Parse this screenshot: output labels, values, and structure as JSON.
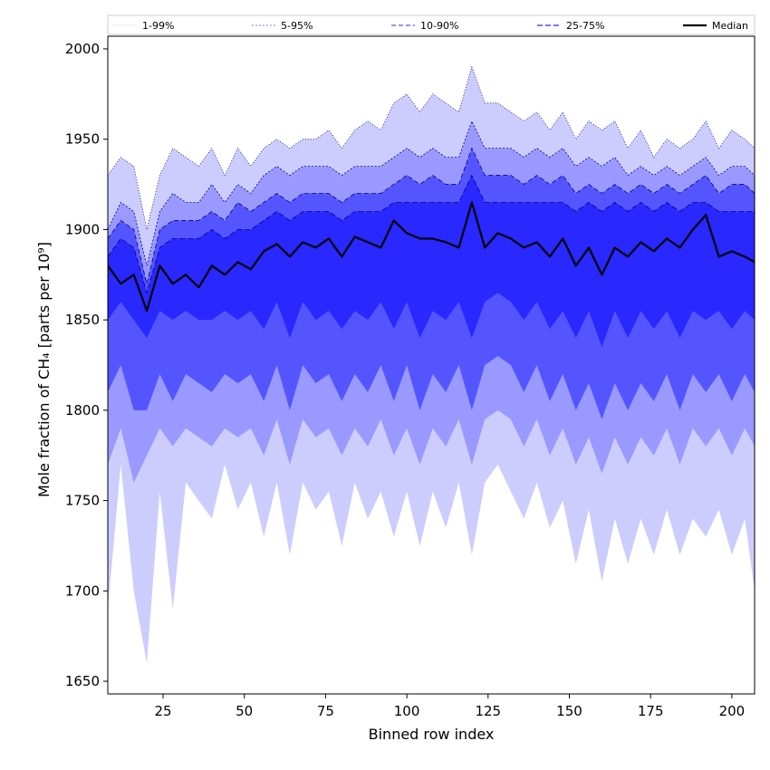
{
  "chart_data": {
    "type": "area",
    "title": "",
    "xlabel": "Binned row index",
    "ylabel": "Mole fraction of CH₄ [parts per 10⁹]",
    "xlim": [
      8,
      207
    ],
    "ylim": [
      1643,
      2007
    ],
    "xticks": [
      25,
      50,
      75,
      100,
      125,
      150,
      175,
      200
    ],
    "yticks": [
      1650,
      1700,
      1750,
      1800,
      1850,
      1900,
      1950,
      2000
    ],
    "grid": false,
    "legend_position": "top",
    "colors": {
      "band_1_99": "#ccccff",
      "band_5_95": "#9999ff",
      "band_10_90": "#5555ff",
      "band_25_75": "#2828ff",
      "median": "#000000",
      "percentile_line": "#00008b"
    },
    "legend": [
      {
        "label": "1-99%",
        "style": "band_1_99"
      },
      {
        "label": "5-95%",
        "style": "band_5_95"
      },
      {
        "label": "10-90%",
        "style": "band_10_90"
      },
      {
        "label": "25-75%",
        "style": "band_25_75"
      },
      {
        "label": "Median",
        "style": "median"
      }
    ],
    "x": [
      8,
      12,
      16,
      20,
      24,
      28,
      32,
      36,
      40,
      44,
      48,
      52,
      56,
      60,
      64,
      68,
      72,
      76,
      80,
      84,
      88,
      92,
      96,
      100,
      104,
      108,
      112,
      116,
      120,
      124,
      128,
      132,
      136,
      140,
      144,
      148,
      152,
      156,
      160,
      164,
      168,
      172,
      176,
      180,
      184,
      188,
      192,
      196,
      200,
      204,
      207
    ],
    "series": [
      {
        "name": "1-99%",
        "lower": [
          1690,
          1770,
          1700,
          1660,
          1755,
          1690,
          1760,
          1750,
          1740,
          1770,
          1745,
          1760,
          1730,
          1760,
          1720,
          1760,
          1745,
          1755,
          1725,
          1760,
          1740,
          1755,
          1730,
          1755,
          1725,
          1755,
          1735,
          1760,
          1720,
          1760,
          1770,
          1755,
          1740,
          1760,
          1735,
          1750,
          1715,
          1745,
          1705,
          1740,
          1715,
          1740,
          1720,
          1745,
          1720,
          1740,
          1730,
          1745,
          1720,
          1740,
          1700
        ],
        "upper": [
          1930,
          1940,
          1935,
          1900,
          1930,
          1945,
          1940,
          1935,
          1945,
          1930,
          1945,
          1935,
          1945,
          1950,
          1945,
          1950,
          1950,
          1955,
          1945,
          1955,
          1960,
          1955,
          1970,
          1975,
          1965,
          1975,
          1970,
          1965,
          1990,
          1970,
          1970,
          1965,
          1960,
          1965,
          1955,
          1965,
          1950,
          1960,
          1955,
          1960,
          1945,
          1955,
          1940,
          1950,
          1945,
          1950,
          1960,
          1945,
          1955,
          1950,
          1945
        ]
      },
      {
        "name": "5-95%",
        "lower": [
          1770,
          1790,
          1760,
          1775,
          1790,
          1780,
          1790,
          1785,
          1780,
          1790,
          1785,
          1790,
          1775,
          1795,
          1770,
          1795,
          1785,
          1790,
          1775,
          1790,
          1780,
          1795,
          1775,
          1790,
          1770,
          1790,
          1780,
          1795,
          1770,
          1795,
          1800,
          1795,
          1780,
          1795,
          1775,
          1790,
          1770,
          1785,
          1765,
          1785,
          1770,
          1785,
          1775,
          1790,
          1770,
          1790,
          1780,
          1790,
          1775,
          1790,
          1780
        ],
        "upper": [
          1900,
          1915,
          1910,
          1880,
          1910,
          1920,
          1915,
          1915,
          1925,
          1915,
          1925,
          1920,
          1930,
          1935,
          1930,
          1935,
          1935,
          1935,
          1930,
          1935,
          1935,
          1935,
          1940,
          1945,
          1940,
          1945,
          1940,
          1940,
          1960,
          1945,
          1945,
          1945,
          1940,
          1945,
          1940,
          1945,
          1935,
          1940,
          1935,
          1940,
          1930,
          1935,
          1930,
          1935,
          1930,
          1935,
          1940,
          1930,
          1935,
          1935,
          1930
        ]
      },
      {
        "name": "10-90%",
        "lower": [
          1810,
          1825,
          1800,
          1800,
          1820,
          1805,
          1820,
          1815,
          1810,
          1820,
          1815,
          1820,
          1805,
          1825,
          1800,
          1825,
          1815,
          1820,
          1805,
          1820,
          1810,
          1825,
          1805,
          1825,
          1800,
          1820,
          1810,
          1825,
          1800,
          1825,
          1830,
          1825,
          1810,
          1825,
          1805,
          1820,
          1800,
          1815,
          1795,
          1815,
          1800,
          1815,
          1805,
          1820,
          1800,
          1820,
          1810,
          1820,
          1805,
          1820,
          1810
        ],
        "upper": [
          1895,
          1905,
          1900,
          1870,
          1900,
          1905,
          1905,
          1905,
          1910,
          1905,
          1915,
          1910,
          1915,
          1920,
          1915,
          1920,
          1920,
          1920,
          1915,
          1920,
          1920,
          1920,
          1925,
          1930,
          1925,
          1930,
          1925,
          1925,
          1945,
          1930,
          1930,
          1930,
          1925,
          1930,
          1925,
          1930,
          1920,
          1925,
          1920,
          1925,
          1920,
          1925,
          1920,
          1925,
          1920,
          1925,
          1930,
          1920,
          1925,
          1925,
          1920
        ]
      },
      {
        "name": "25-75%",
        "lower": [
          1850,
          1860,
          1850,
          1840,
          1855,
          1850,
          1855,
          1850,
          1850,
          1855,
          1850,
          1855,
          1845,
          1860,
          1840,
          1860,
          1850,
          1855,
          1845,
          1855,
          1850,
          1860,
          1845,
          1860,
          1840,
          1855,
          1850,
          1860,
          1840,
          1860,
          1865,
          1860,
          1850,
          1860,
          1845,
          1855,
          1840,
          1855,
          1835,
          1855,
          1840,
          1855,
          1845,
          1855,
          1840,
          1855,
          1850,
          1855,
          1845,
          1855,
          1850
        ],
        "upper": [
          1885,
          1895,
          1890,
          1865,
          1890,
          1895,
          1895,
          1895,
          1900,
          1895,
          1900,
          1900,
          1905,
          1910,
          1905,
          1910,
          1910,
          1910,
          1905,
          1910,
          1910,
          1910,
          1915,
          1915,
          1915,
          1915,
          1915,
          1915,
          1930,
          1915,
          1915,
          1915,
          1915,
          1915,
          1915,
          1915,
          1910,
          1915,
          1910,
          1915,
          1910,
          1915,
          1910,
          1915,
          1910,
          1915,
          1915,
          1910,
          1910,
          1910,
          1910
        ]
      },
      {
        "name": "Median",
        "values": [
          1880,
          1870,
          1875,
          1855,
          1880,
          1870,
          1875,
          1868,
          1880,
          1875,
          1882,
          1878,
          1888,
          1892,
          1885,
          1893,
          1890,
          1895,
          1885,
          1896,
          1893,
          1890,
          1905,
          1898,
          1895,
          1895,
          1893,
          1890,
          1915,
          1890,
          1898,
          1895,
          1890,
          1893,
          1885,
          1895,
          1880,
          1890,
          1875,
          1890,
          1885,
          1893,
          1888,
          1895,
          1890,
          1900,
          1908,
          1885,
          1888,
          1885,
          1882
        ]
      }
    ]
  }
}
